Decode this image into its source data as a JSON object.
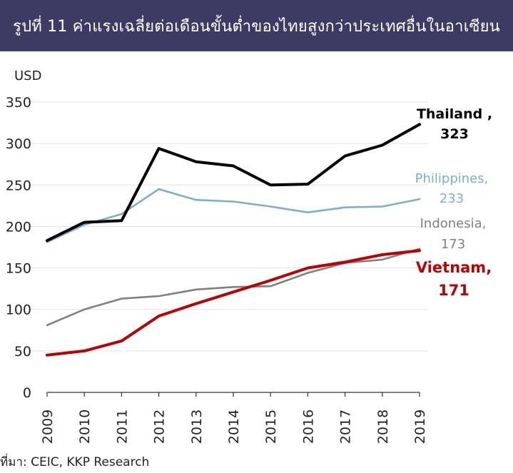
{
  "header": {
    "title": "รูปที่ 11 ค่าแรงเฉลี่ยต่อเดือนขั้นต่ำของไทยสูงกว่าประเทศอื่นในอาเซียน",
    "background": "#3d3a63"
  },
  "source": "ที่มา: CEIC, KKP Research",
  "chart_data": {
    "type": "line",
    "ylabel": "USD",
    "ylim": [
      0,
      350
    ],
    "yticks": [
      0,
      50,
      100,
      150,
      200,
      250,
      300,
      350
    ],
    "x": [
      "2009",
      "2010",
      "2011",
      "2012",
      "2013",
      "2014",
      "2015",
      "2016",
      "2017",
      "2018",
      "2019"
    ],
    "grid": true,
    "series": [
      {
        "name": "Thailand",
        "values": [
          183,
          205,
          207,
          294,
          278,
          273,
          250,
          251,
          285,
          298,
          323
        ],
        "color": "#000000",
        "label": "Thailand ,",
        "end_label": "323"
      },
      {
        "name": "Philippines",
        "values": [
          181,
          202,
          215,
          245,
          232,
          230,
          224,
          217,
          223,
          224,
          233
        ],
        "color": "#7ab0cc",
        "label": "Philippines,",
        "end_label": "233"
      },
      {
        "name": "Indonesia",
        "values": [
          81,
          100,
          113,
          116,
          124,
          127,
          128,
          144,
          156,
          160,
          173
        ],
        "color": "#808080",
        "label": "Indonesia,",
        "end_label": "173"
      },
      {
        "name": "Vietnam",
        "values": [
          45,
          50,
          62,
          92,
          107,
          121,
          135,
          150,
          157,
          166,
          171
        ],
        "color": "#c00000",
        "label": "Vietnam,",
        "end_label": "171"
      }
    ]
  }
}
